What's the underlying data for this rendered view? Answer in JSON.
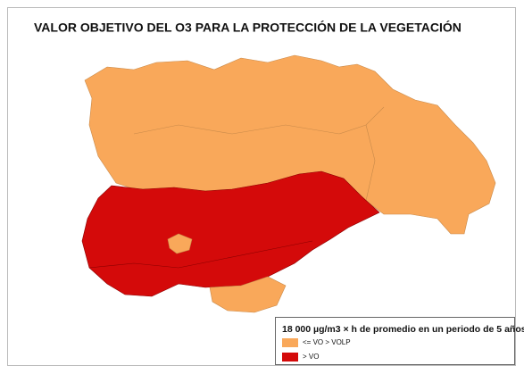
{
  "title": "VALOR OBJETIVO DEL O3 PARA LA PROTECCIÓN DE LA VEGETACIÓN",
  "legend": {
    "title": "18 000 µg/m3 × h de promedio en un periodo de 5 años",
    "items": [
      {
        "label": "<= VO > VOLP",
        "color": "#f9a85a"
      },
      {
        "label": "> VO",
        "color": "#d40a0a"
      }
    ]
  }
}
